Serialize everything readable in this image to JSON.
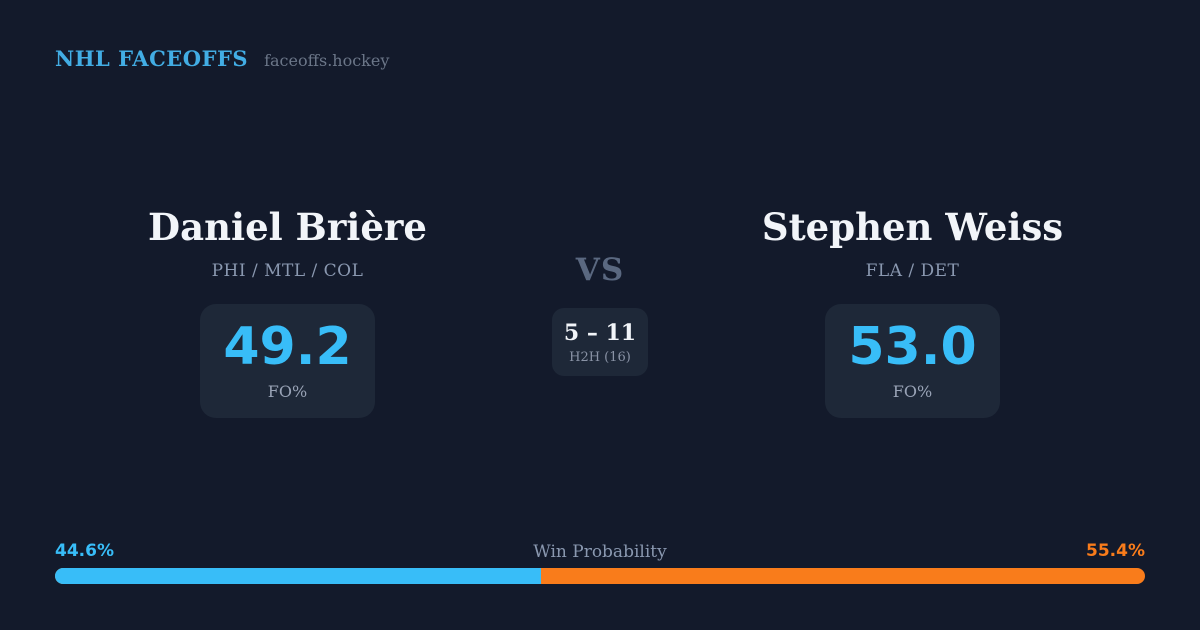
{
  "header": {
    "brand": "NHL FACEOFFS",
    "site": "faceoffs.hockey"
  },
  "matchup": {
    "vs_label": "VS",
    "h2h": {
      "score": "5 – 11",
      "label": "H2H (16)"
    },
    "player_left": {
      "name": "Daniel Brière",
      "teams": "PHI / MTL / COL",
      "fo_pct": "49.2",
      "fo_label": "FO%"
    },
    "player_right": {
      "name": "Stephen Weiss",
      "teams": "FLA / DET",
      "fo_pct": "53.0",
      "fo_label": "FO%"
    }
  },
  "win_probability": {
    "label": "Win Probability",
    "left_pct_text": "44.6%",
    "right_pct_text": "55.4%",
    "left_value": 44.6,
    "right_value": 55.4
  },
  "colors": {
    "background": "#131a2b",
    "card": "#1e2838",
    "accent_blue": "#38bdf8",
    "accent_orange": "#f97c1b",
    "brand_blue": "#42ade4",
    "text_white": "#f2f5f9",
    "text_gray": "#8a98b0"
  }
}
